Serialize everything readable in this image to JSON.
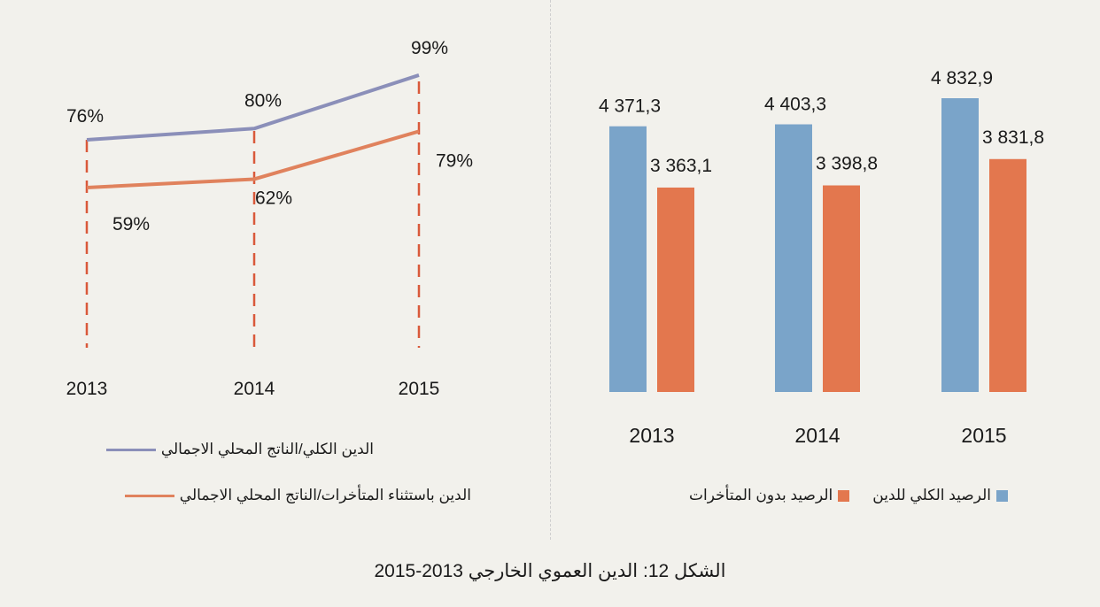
{
  "caption": "الشكل 12: الدين العموي الخارجي 2013-2015",
  "colors": {
    "blue": "#7aa4c9",
    "orange": "#e3774e",
    "line_blue": "#8b8fb9",
    "line_orange": "#e0825d"
  },
  "chart_data": [
    {
      "type": "line",
      "categories": [
        "2013",
        "2014",
        "2015"
      ],
      "series": [
        {
          "name": "الدين الكلي/الناتج المحلي الاجمالي",
          "values": [
            76,
            80,
            99
          ],
          "labels": [
            "76%",
            "80%",
            "99%"
          ],
          "color": "#8b8fb9"
        },
        {
          "name": "الدين باستثناء المتأخرات/الناتج المحلي الاجمالي",
          "values": [
            59,
            62,
            79
          ],
          "labels": [
            "59%",
            "62%",
            "79%"
          ],
          "color": "#e0825d"
        }
      ],
      "ylim": [
        0,
        100
      ],
      "grid": false,
      "legend_position": "bottom"
    },
    {
      "type": "bar",
      "categories": [
        "2013",
        "2014",
        "2015"
      ],
      "series": [
        {
          "name": "الرصيد الكلي للدين",
          "values": [
            4371.3,
            4403.3,
            4832.9
          ],
          "labels": [
            "4 371,3",
            "4 403,3",
            "4 832,9"
          ],
          "color": "#7aa4c9"
        },
        {
          "name": "الرصيد بدون المتأخرات",
          "values": [
            3363.1,
            3398.8,
            3831.8
          ],
          "labels": [
            "3 363,1",
            "3 398,8",
            "3 831,8"
          ],
          "color": "#e3774e"
        }
      ],
      "ylim": [
        0,
        5000
      ],
      "grid": false,
      "legend_position": "bottom"
    }
  ]
}
